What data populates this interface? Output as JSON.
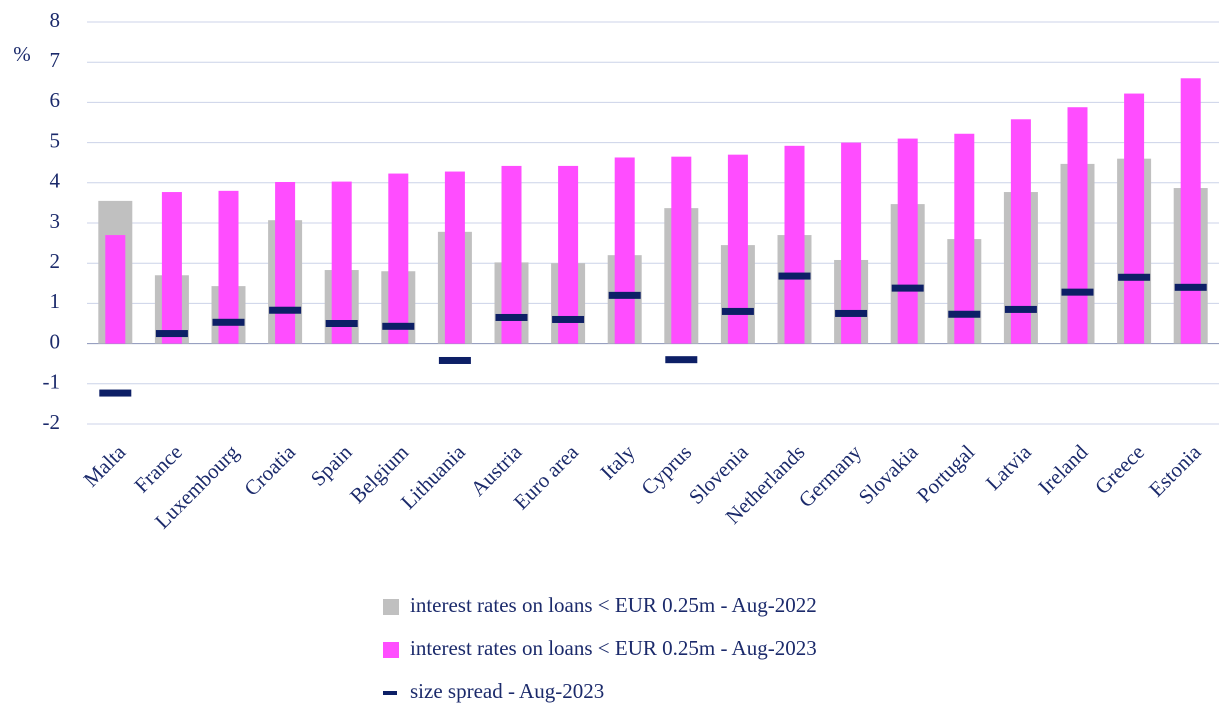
{
  "chart_data": {
    "type": "bar",
    "y_label": "%",
    "categories": [
      "Malta",
      "France",
      "Luxembourg",
      "Croatia",
      "Spain",
      "Belgium",
      "Lithuania",
      "Austria",
      "Euro area",
      "Italy",
      "Cyprus",
      "Slovenia",
      "Netherlands",
      "Germany",
      "Slovakia",
      "Portugal",
      "Latvia",
      "Ireland",
      "Greece",
      "Estonia"
    ],
    "series": [
      {
        "name": "interest rates on loans < EUR 0.25m - Aug-2022",
        "color": "#c0c0c0",
        "mark": "bar",
        "values": [
          3.55,
          1.7,
          1.43,
          3.07,
          1.83,
          1.8,
          2.78,
          2.02,
          2.0,
          2.2,
          3.37,
          2.45,
          2.7,
          2.08,
          3.47,
          2.6,
          3.77,
          4.47,
          4.6,
          3.87
        ]
      },
      {
        "name": "interest rates on loans < EUR 0.25m - Aug-2023",
        "color": "#ff4dff",
        "mark": "bar",
        "values": [
          2.7,
          3.77,
          3.8,
          4.02,
          4.03,
          4.23,
          4.28,
          4.42,
          4.42,
          4.63,
          4.65,
          4.7,
          4.92,
          5.0,
          5.1,
          5.22,
          5.58,
          5.88,
          6.22,
          6.6
        ]
      },
      {
        "name": "size spread - Aug-2023",
        "color": "#0d1f66",
        "mark": "dash",
        "values": [
          -1.23,
          0.25,
          0.53,
          0.83,
          0.5,
          0.43,
          -0.42,
          0.65,
          0.6,
          1.2,
          -0.4,
          0.8,
          1.68,
          0.75,
          1.38,
          0.73,
          0.85,
          1.28,
          1.65,
          1.4
        ]
      }
    ],
    "ylim": [
      -2,
      8
    ],
    "yticks": [
      -2,
      -1,
      0,
      1,
      2,
      3,
      4,
      5,
      6,
      7,
      8
    ],
    "grid": true
  }
}
